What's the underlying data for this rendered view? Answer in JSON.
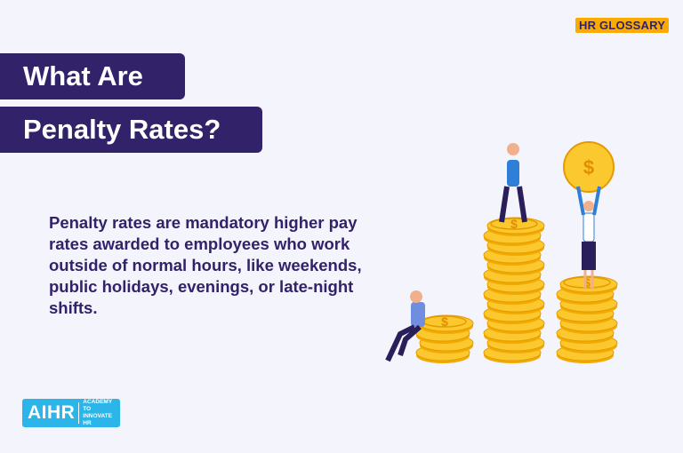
{
  "badge": "HR GLOSSARY",
  "title": {
    "line1": "What Are",
    "line2": "Penalty Rates?"
  },
  "description": "Penalty rates are mandatory higher pay rates awarded to employees who work outside of normal hours, like weekends, public holidays, evenings, or late-night shifts.",
  "logo": {
    "main": "AIHR",
    "sub_line1": "ACADEMY TO",
    "sub_line2": "INNOVATE HR"
  },
  "colors": {
    "primary": "#32226a",
    "accent": "#fbaa00",
    "logo": "#2bb5e8",
    "coin": "#f9c431",
    "background": "#f4f4fd"
  }
}
